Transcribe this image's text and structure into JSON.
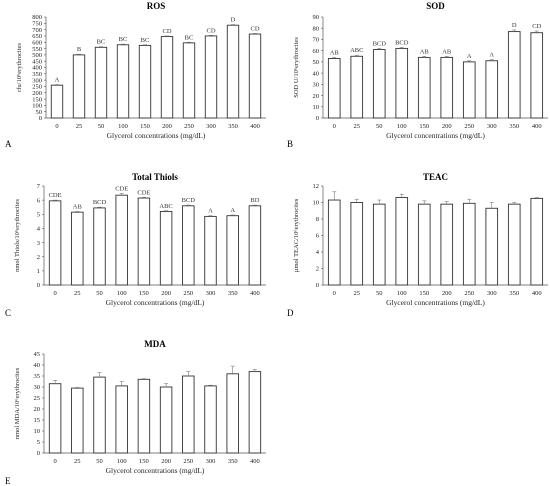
{
  "chart_data": [
    {
      "type": "bar",
      "panel": "A",
      "title": "ROS",
      "xlabel": "Glycerol concentrations (mg/dL)",
      "ylabel": "rfu/10⁶erythrocites",
      "ylim": [
        0,
        800
      ],
      "yticks": [
        0,
        50,
        100,
        150,
        200,
        250,
        300,
        350,
        400,
        450,
        500,
        550,
        600,
        650,
        700,
        750,
        800
      ],
      "categories": [
        "0",
        "25",
        "50",
        "100",
        "150",
        "200",
        "250",
        "300",
        "350",
        "400"
      ],
      "values": [
        260,
        500,
        560,
        580,
        575,
        645,
        595,
        650,
        735,
        665
      ],
      "errors": [
        5,
        5,
        5,
        5,
        5,
        5,
        5,
        5,
        5,
        5
      ],
      "letters": [
        "A",
        "B",
        "BC",
        "BC",
        "BC",
        "CD",
        "BC",
        "CD",
        "D",
        "CD"
      ]
    },
    {
      "type": "bar",
      "panel": "B",
      "title": "SOD",
      "xlabel": "Glycerol concentrations (mg/dL)",
      "ylabel": "SOD U/10⁶erythrocites",
      "ylim": [
        0,
        90
      ],
      "yticks": [
        0,
        10,
        20,
        30,
        40,
        50,
        60,
        70,
        80,
        90
      ],
      "categories": [
        "0",
        "25",
        "50",
        "100",
        "150",
        "200",
        "250",
        "300",
        "350",
        "400"
      ],
      "values": [
        53,
        55,
        61,
        62,
        54,
        54,
        50,
        51,
        77,
        76
      ],
      "errors": [
        1,
        1,
        1,
        1,
        1,
        1,
        1,
        1,
        1.5,
        1.5
      ],
      "letters": [
        "AB",
        "ABC",
        "BCD",
        "BCD",
        "AB",
        "AB",
        "A",
        "A",
        "D",
        "CD"
      ]
    },
    {
      "type": "bar",
      "panel": "C",
      "title": "Total Thiols",
      "xlabel": "Glycerol concentrations (mg/dL)",
      "ylabel": "nmol Thiols/10⁶erythrocites",
      "ylim": [
        0,
        7
      ],
      "yticks": [
        0,
        1,
        2,
        3,
        4,
        5,
        6,
        7
      ],
      "categories": [
        "0",
        "25",
        "50",
        "100",
        "150",
        "200",
        "250",
        "300",
        "350",
        "400"
      ],
      "values": [
        5.95,
        5.15,
        5.45,
        6.35,
        6.15,
        5.2,
        5.6,
        4.85,
        4.9,
        5.6
      ],
      "errors": [
        0.05,
        0.05,
        0.05,
        0.12,
        0.05,
        0.05,
        0.05,
        0.05,
        0.05,
        0.05
      ],
      "letters": [
        "CDE",
        "AB",
        "BCD",
        "CDE",
        "CDE",
        "ABC",
        "BCD",
        "A",
        "A",
        "BD"
      ]
    },
    {
      "type": "bar",
      "panel": "D",
      "title": "TEAC",
      "xlabel": "Glycerol concentrations (mg/dL)",
      "ylabel": "µmol TEAC/10⁶erythrocites",
      "ylim": [
        0,
        12
      ],
      "yticks": [
        0,
        2,
        4,
        6,
        8,
        10,
        12
      ],
      "categories": [
        "0",
        "25",
        "50",
        "100",
        "150",
        "200",
        "250",
        "300",
        "350",
        "400"
      ],
      "values": [
        10.3,
        10.0,
        9.8,
        10.6,
        9.8,
        9.8,
        9.9,
        9.3,
        9.8,
        10.5
      ],
      "errors": [
        1.0,
        0.4,
        0.5,
        0.4,
        0.4,
        0.3,
        0.5,
        0.7,
        0.2,
        0.1
      ],
      "letters": []
    },
    {
      "type": "bar",
      "panel": "E",
      "title": "MDA",
      "xlabel": "Glycerol concentrations (mg/dL)",
      "ylabel": "nmol MDA/10⁶erythrocites",
      "ylim": [
        0,
        45
      ],
      "yticks": [
        0,
        5,
        10,
        15,
        20,
        25,
        30,
        35,
        40,
        45
      ],
      "categories": [
        "0",
        "25",
        "50",
        "100",
        "150",
        "200",
        "250",
        "300",
        "350",
        "400"
      ],
      "values": [
        31.5,
        29.5,
        34.5,
        30.5,
        33.5,
        30,
        35,
        30.5,
        36,
        37
      ],
      "errors": [
        1.5,
        0.3,
        2,
        2,
        0.3,
        1.5,
        2,
        0.3,
        3.5,
        1
      ],
      "letters": []
    }
  ]
}
